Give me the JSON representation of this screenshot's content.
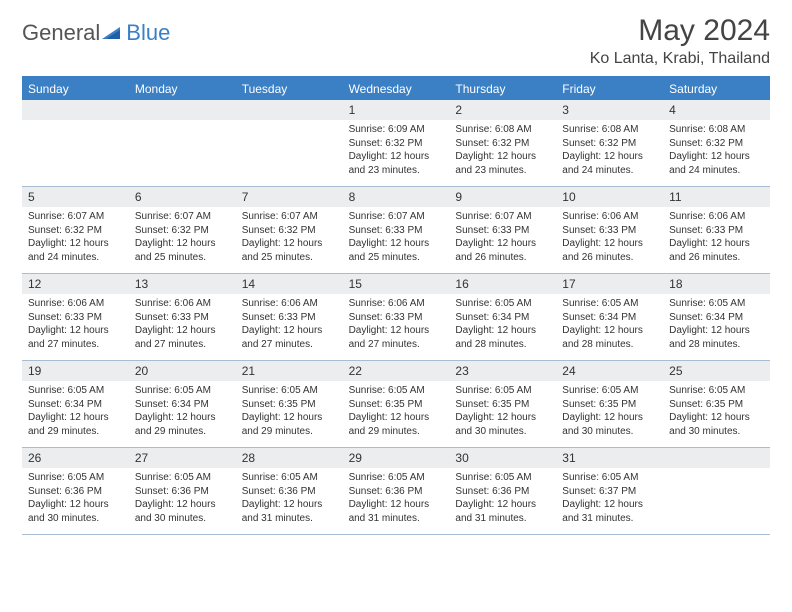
{
  "brand": {
    "name1": "General",
    "name2": "Blue"
  },
  "header": {
    "month_title": "May 2024",
    "location": "Ko Lanta, Krabi, Thailand"
  },
  "dow": [
    "Sunday",
    "Monday",
    "Tuesday",
    "Wednesday",
    "Thursday",
    "Friday",
    "Saturday"
  ],
  "colors": {
    "accent": "#3b7fc4",
    "daynum_bg": "#ebedef",
    "border": "#a8bdd4",
    "text": "#333333"
  },
  "weeks": [
    [
      null,
      null,
      null,
      {
        "n": "1",
        "sr": "6:09 AM",
        "ss": "6:32 PM",
        "dh": "12",
        "dm": "23"
      },
      {
        "n": "2",
        "sr": "6:08 AM",
        "ss": "6:32 PM",
        "dh": "12",
        "dm": "23"
      },
      {
        "n": "3",
        "sr": "6:08 AM",
        "ss": "6:32 PM",
        "dh": "12",
        "dm": "24"
      },
      {
        "n": "4",
        "sr": "6:08 AM",
        "ss": "6:32 PM",
        "dh": "12",
        "dm": "24"
      }
    ],
    [
      {
        "n": "5",
        "sr": "6:07 AM",
        "ss": "6:32 PM",
        "dh": "12",
        "dm": "24"
      },
      {
        "n": "6",
        "sr": "6:07 AM",
        "ss": "6:32 PM",
        "dh": "12",
        "dm": "25"
      },
      {
        "n": "7",
        "sr": "6:07 AM",
        "ss": "6:32 PM",
        "dh": "12",
        "dm": "25"
      },
      {
        "n": "8",
        "sr": "6:07 AM",
        "ss": "6:33 PM",
        "dh": "12",
        "dm": "25"
      },
      {
        "n": "9",
        "sr": "6:07 AM",
        "ss": "6:33 PM",
        "dh": "12",
        "dm": "26"
      },
      {
        "n": "10",
        "sr": "6:06 AM",
        "ss": "6:33 PM",
        "dh": "12",
        "dm": "26"
      },
      {
        "n": "11",
        "sr": "6:06 AM",
        "ss": "6:33 PM",
        "dh": "12",
        "dm": "26"
      }
    ],
    [
      {
        "n": "12",
        "sr": "6:06 AM",
        "ss": "6:33 PM",
        "dh": "12",
        "dm": "27"
      },
      {
        "n": "13",
        "sr": "6:06 AM",
        "ss": "6:33 PM",
        "dh": "12",
        "dm": "27"
      },
      {
        "n": "14",
        "sr": "6:06 AM",
        "ss": "6:33 PM",
        "dh": "12",
        "dm": "27"
      },
      {
        "n": "15",
        "sr": "6:06 AM",
        "ss": "6:33 PM",
        "dh": "12",
        "dm": "27"
      },
      {
        "n": "16",
        "sr": "6:05 AM",
        "ss": "6:34 PM",
        "dh": "12",
        "dm": "28"
      },
      {
        "n": "17",
        "sr": "6:05 AM",
        "ss": "6:34 PM",
        "dh": "12",
        "dm": "28"
      },
      {
        "n": "18",
        "sr": "6:05 AM",
        "ss": "6:34 PM",
        "dh": "12",
        "dm": "28"
      }
    ],
    [
      {
        "n": "19",
        "sr": "6:05 AM",
        "ss": "6:34 PM",
        "dh": "12",
        "dm": "29"
      },
      {
        "n": "20",
        "sr": "6:05 AM",
        "ss": "6:34 PM",
        "dh": "12",
        "dm": "29"
      },
      {
        "n": "21",
        "sr": "6:05 AM",
        "ss": "6:35 PM",
        "dh": "12",
        "dm": "29"
      },
      {
        "n": "22",
        "sr": "6:05 AM",
        "ss": "6:35 PM",
        "dh": "12",
        "dm": "29"
      },
      {
        "n": "23",
        "sr": "6:05 AM",
        "ss": "6:35 PM",
        "dh": "12",
        "dm": "30"
      },
      {
        "n": "24",
        "sr": "6:05 AM",
        "ss": "6:35 PM",
        "dh": "12",
        "dm": "30"
      },
      {
        "n": "25",
        "sr": "6:05 AM",
        "ss": "6:35 PM",
        "dh": "12",
        "dm": "30"
      }
    ],
    [
      {
        "n": "26",
        "sr": "6:05 AM",
        "ss": "6:36 PM",
        "dh": "12",
        "dm": "30"
      },
      {
        "n": "27",
        "sr": "6:05 AM",
        "ss": "6:36 PM",
        "dh": "12",
        "dm": "30"
      },
      {
        "n": "28",
        "sr": "6:05 AM",
        "ss": "6:36 PM",
        "dh": "12",
        "dm": "31"
      },
      {
        "n": "29",
        "sr": "6:05 AM",
        "ss": "6:36 PM",
        "dh": "12",
        "dm": "31"
      },
      {
        "n": "30",
        "sr": "6:05 AM",
        "ss": "6:36 PM",
        "dh": "12",
        "dm": "31"
      },
      {
        "n": "31",
        "sr": "6:05 AM",
        "ss": "6:37 PM",
        "dh": "12",
        "dm": "31"
      },
      null
    ]
  ],
  "labels": {
    "sunrise": "Sunrise:",
    "sunset": "Sunset:",
    "daylight": "Daylight:",
    "hours_word": "hours",
    "and_word": "and",
    "minutes_word": "minutes."
  }
}
